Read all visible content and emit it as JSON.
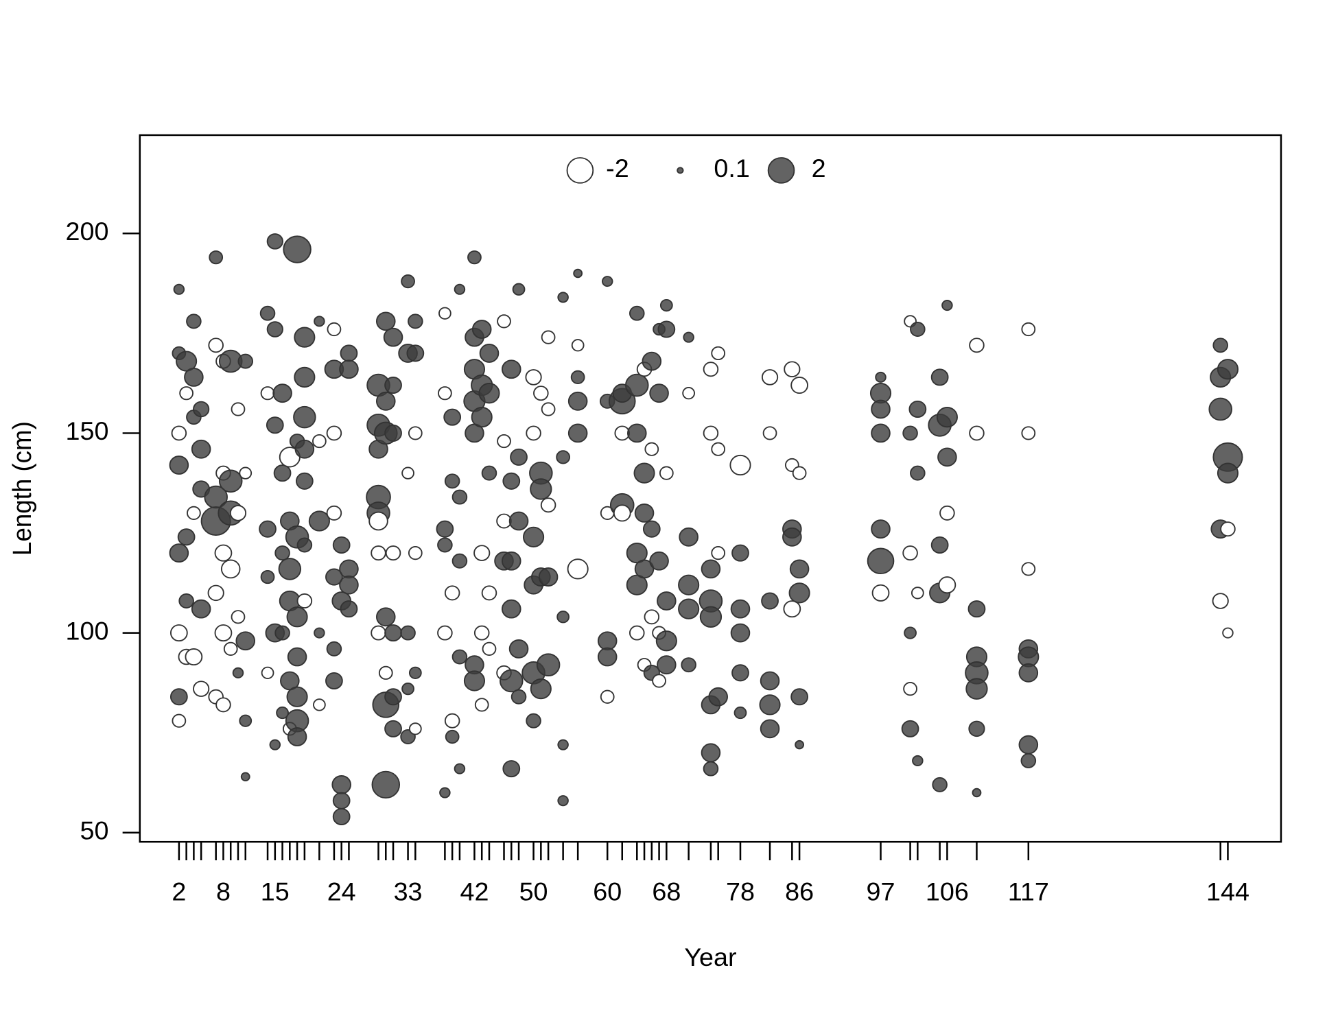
{
  "chart_data": {
    "type": "bubble",
    "x_label": "Year",
    "y_label": "Length (cm)",
    "xlim": [
      -3.3,
      151.2
    ],
    "ylim": [
      47.7,
      224.6
    ],
    "xticks": [
      2,
      8,
      15,
      24,
      33,
      42,
      50,
      60,
      68,
      78,
      86,
      97,
      106,
      117,
      144
    ],
    "xticks_minor": [
      3,
      4,
      5,
      7,
      9,
      10,
      11,
      14,
      16,
      17,
      18,
      19,
      21,
      23,
      25,
      29,
      30,
      31,
      34,
      38,
      39,
      40,
      43,
      44,
      46,
      47,
      48,
      51,
      52,
      54,
      56,
      62,
      64,
      65,
      66,
      67,
      71,
      74,
      75,
      82,
      85,
      101,
      102,
      105,
      110,
      143
    ],
    "yticks": [
      50,
      100,
      150,
      200
    ],
    "legend_values": [
      -2,
      0.1,
      2
    ],
    "positive_color": "#3c3c3c",
    "negative_color": "#ffffff",
    "columns": [
      {
        "x": 2,
        "y": [
          186,
          170,
          150,
          142,
          120,
          100,
          84,
          78
        ],
        "values": [
          0.3,
          0.5,
          -0.6,
          1,
          1,
          -0.8,
          0.8,
          -0.5
        ]
      },
      {
        "x": 3,
        "y": [
          168,
          160,
          124,
          108,
          94
        ],
        "values": [
          1.2,
          -0.5,
          0.8,
          0.6,
          -0.7
        ]
      },
      {
        "x": 4,
        "y": [
          178,
          164,
          154,
          130,
          94
        ],
        "values": [
          0.6,
          1,
          0.6,
          -0.5,
          -0.8
        ]
      },
      {
        "x": 5,
        "y": [
          156,
          146,
          136,
          106,
          86
        ],
        "values": [
          0.7,
          1,
          0.8,
          1,
          -0.7
        ]
      },
      {
        "x": 7,
        "y": [
          194,
          172,
          134,
          128,
          110,
          84
        ],
        "values": [
          0.5,
          -0.6,
          1.5,
          2.5,
          -0.7,
          -0.6
        ]
      },
      {
        "x": 8,
        "y": [
          168,
          140,
          120,
          100,
          82
        ],
        "values": [
          -0.6,
          -0.6,
          -0.8,
          -0.8,
          -0.6
        ]
      },
      {
        "x": 9,
        "y": [
          168,
          138,
          130,
          116,
          96
        ],
        "values": [
          1.5,
          1.5,
          1.8,
          -1,
          -0.5
        ]
      },
      {
        "x": 10,
        "y": [
          156,
          130,
          104,
          90
        ],
        "values": [
          -0.5,
          -0.7,
          -0.5,
          0.3
        ]
      },
      {
        "x": 11,
        "y": [
          168,
          140,
          98,
          78,
          64
        ],
        "values": [
          0.6,
          -0.4,
          1,
          0.4,
          0.2
        ]
      },
      {
        "x": 14,
        "y": [
          180,
          160,
          126,
          114,
          90
        ],
        "values": [
          0.6,
          -0.5,
          0.8,
          0.5,
          -0.4
        ]
      },
      {
        "x": 15,
        "y": [
          198,
          176,
          152,
          100,
          72
        ],
        "values": [
          0.7,
          0.7,
          0.8,
          1,
          0.3
        ]
      },
      {
        "x": 16,
        "y": [
          160,
          140,
          120,
          100,
          80
        ],
        "values": [
          1,
          0.8,
          0.6,
          0.6,
          0.4
        ]
      },
      {
        "x": 17,
        "y": [
          144,
          128,
          116,
          108,
          88,
          76
        ],
        "values": [
          -1.2,
          1,
          1.4,
          1.2,
          1,
          -0.5
        ]
      },
      {
        "x": 18,
        "y": [
          196,
          148,
          124,
          104,
          94,
          84,
          78,
          74
        ],
        "values": [
          2.2,
          0.6,
          1.5,
          1.2,
          1,
          1.2,
          1.5,
          1
        ]
      },
      {
        "x": 19,
        "y": [
          174,
          164,
          154,
          146,
          138,
          122,
          108
        ],
        "values": [
          1.2,
          1.2,
          1.4,
          1,
          0.8,
          0.6,
          -0.6
        ]
      },
      {
        "x": 21,
        "y": [
          178,
          148,
          128,
          100,
          82
        ],
        "values": [
          0.3,
          -0.5,
          1.2,
          0.3,
          -0.4
        ]
      },
      {
        "x": 23,
        "y": [
          176,
          166,
          150,
          130,
          114,
          96,
          88
        ],
        "values": [
          -0.5,
          1,
          -0.6,
          -0.6,
          0.8,
          0.6,
          0.8
        ]
      },
      {
        "x": 24,
        "y": [
          122,
          108,
          62,
          58,
          54
        ],
        "values": [
          0.8,
          1,
          1,
          0.8,
          0.8
        ]
      },
      {
        "x": 25,
        "y": [
          170,
          166,
          116,
          112,
          106
        ],
        "values": [
          0.8,
          1,
          1,
          1,
          0.8
        ]
      },
      {
        "x": 29,
        "y": [
          162,
          152,
          146,
          134,
          130,
          128,
          120,
          100
        ],
        "values": [
          1.5,
          1.5,
          1,
          1.7,
          1.5,
          -1,
          -0.6,
          -0.6
        ]
      },
      {
        "x": 30,
        "y": [
          178,
          158,
          150,
          104,
          82,
          62,
          90
        ],
        "values": [
          1,
          1,
          1.5,
          1,
          2,
          2.2,
          -0.5
        ]
      },
      {
        "x": 31,
        "y": [
          174,
          162,
          150,
          120,
          100,
          84,
          76
        ],
        "values": [
          1,
          0.8,
          0.8,
          -0.6,
          0.8,
          0.8,
          0.8
        ]
      },
      {
        "x": 33,
        "y": [
          188,
          170,
          140,
          100,
          86,
          74
        ],
        "values": [
          0.5,
          1,
          -0.4,
          0.6,
          0.4,
          0.6
        ]
      },
      {
        "x": 34,
        "y": [
          178,
          170,
          150,
          120,
          90,
          76
        ],
        "values": [
          0.6,
          0.8,
          -0.5,
          -0.5,
          0.4,
          -0.4
        ]
      },
      {
        "x": 38,
        "y": [
          180,
          160,
          126,
          122,
          100,
          60
        ],
        "values": [
          -0.4,
          -0.5,
          0.8,
          0.6,
          -0.6,
          0.3
        ]
      },
      {
        "x": 39,
        "y": [
          154,
          138,
          110,
          78,
          74
        ],
        "values": [
          0.8,
          0.6,
          -0.6,
          -0.6,
          0.5
        ]
      },
      {
        "x": 40,
        "y": [
          186,
          134,
          118,
          94,
          66
        ],
        "values": [
          0.3,
          0.6,
          0.6,
          0.6,
          0.3
        ]
      },
      {
        "x": 42,
        "y": [
          194,
          174,
          166,
          158,
          150,
          92,
          88
        ],
        "values": [
          0.5,
          1,
          1.2,
          1.3,
          1,
          1,
          1.2
        ]
      },
      {
        "x": 43,
        "y": [
          176,
          162,
          154,
          120,
          100,
          82
        ],
        "values": [
          1,
          1.3,
          1.2,
          -0.7,
          -0.6,
          -0.5
        ]
      },
      {
        "x": 44,
        "y": [
          170,
          160,
          140,
          110,
          96
        ],
        "values": [
          1,
          1.2,
          0.6,
          -0.6,
          -0.5
        ]
      },
      {
        "x": 46,
        "y": [
          178,
          148,
          128,
          118,
          90
        ],
        "values": [
          -0.5,
          -0.5,
          -0.6,
          1,
          -0.6
        ]
      },
      {
        "x": 47,
        "y": [
          166,
          138,
          118,
          106,
          88,
          66
        ],
        "values": [
          1,
          0.8,
          1,
          1,
          1.5,
          0.8
        ]
      },
      {
        "x": 48,
        "y": [
          186,
          144,
          128,
          96,
          84
        ],
        "values": [
          0.4,
          0.8,
          1,
          1,
          0.6
        ]
      },
      {
        "x": 50,
        "y": [
          164,
          150,
          124,
          112,
          90,
          78
        ],
        "values": [
          -0.7,
          -0.6,
          1.2,
          1,
          1.5,
          0.6
        ]
      },
      {
        "x": 51,
        "y": [
          160,
          140,
          136,
          114,
          86
        ],
        "values": [
          -0.6,
          1.5,
          1.3,
          1,
          1.2
        ]
      },
      {
        "x": 52,
        "y": [
          174,
          156,
          132,
          114,
          92
        ],
        "values": [
          -0.5,
          -0.5,
          -0.6,
          1,
          1.5
        ]
      },
      {
        "x": 54,
        "y": [
          184,
          144,
          104,
          72,
          58
        ],
        "values": [
          0.3,
          0.5,
          0.4,
          0.3,
          0.3
        ]
      },
      {
        "x": 56,
        "y": [
          190,
          172,
          164,
          158,
          150,
          116
        ],
        "values": [
          0.2,
          -0.4,
          0.5,
          1,
          1,
          -1.2
        ]
      },
      {
        "x": 60,
        "y": [
          188,
          158,
          130,
          98,
          94,
          84
        ],
        "values": [
          0.3,
          0.6,
          -0.5,
          1,
          1,
          -0.5
        ]
      },
      {
        "x": 62,
        "y": [
          158,
          160,
          132,
          130,
          150
        ],
        "values": [
          2,
          1,
          1.6,
          -0.8,
          -0.6
        ]
      },
      {
        "x": 64,
        "y": [
          180,
          162,
          150,
          120,
          112,
          100
        ],
        "values": [
          0.6,
          1.5,
          1,
          1.2,
          1.2,
          -0.6
        ]
      },
      {
        "x": 65,
        "y": [
          166,
          140,
          130,
          116,
          92
        ],
        "values": [
          -0.6,
          1.2,
          1,
          1,
          -0.5
        ]
      },
      {
        "x": 66,
        "y": [
          168,
          146,
          126,
          104,
          90
        ],
        "values": [
          1,
          -0.5,
          0.8,
          -0.6,
          0.7
        ]
      },
      {
        "x": 67,
        "y": [
          176,
          160,
          118,
          100,
          88
        ],
        "values": [
          0.4,
          1,
          1,
          -0.5,
          -0.5
        ]
      },
      {
        "x": 68,
        "y": [
          182,
          176,
          140,
          108,
          98,
          92
        ],
        "values": [
          0.4,
          0.8,
          -0.5,
          1,
          1.2,
          1
        ]
      },
      {
        "x": 71,
        "y": [
          174,
          160,
          124,
          112,
          106,
          92
        ],
        "values": [
          0.3,
          -0.4,
          1,
          1.2,
          1.2,
          0.6
        ]
      },
      {
        "x": 74,
        "y": [
          166,
          150,
          116,
          108,
          104,
          82,
          70,
          66
        ],
        "values": [
          -0.6,
          -0.6,
          1,
          1.5,
          1.3,
          1,
          1,
          0.6
        ]
      },
      {
        "x": 75,
        "y": [
          170,
          146,
          120,
          84
        ],
        "values": [
          -0.5,
          -0.5,
          -0.5,
          1
        ]
      },
      {
        "x": 78,
        "y": [
          142,
          120,
          106,
          100,
          90,
          80
        ],
        "values": [
          -1.2,
          0.8,
          1,
          1,
          0.8,
          0.4
        ]
      },
      {
        "x": 82,
        "y": [
          164,
          150,
          108,
          88,
          82,
          76
        ],
        "values": [
          -0.7,
          -0.5,
          0.8,
          1,
          1.2,
          1
        ]
      },
      {
        "x": 85,
        "y": [
          166,
          142,
          126,
          124,
          106
        ],
        "values": [
          -0.7,
          -0.5,
          1,
          1,
          -0.8
        ]
      },
      {
        "x": 86,
        "y": [
          162,
          140,
          116,
          110,
          84,
          72
        ],
        "values": [
          -0.8,
          -0.5,
          1,
          1.2,
          0.8,
          0.2
        ]
      },
      {
        "x": 97,
        "y": [
          164,
          160,
          156,
          150,
          126,
          118,
          110
        ],
        "values": [
          0.3,
          1.2,
          1,
          1,
          1,
          2,
          -0.8
        ]
      },
      {
        "x": 101,
        "y": [
          178,
          150,
          120,
          100,
          86,
          76
        ],
        "values": [
          -0.4,
          0.6,
          -0.6,
          0.4,
          -0.5,
          0.8
        ]
      },
      {
        "x": 102,
        "y": [
          176,
          156,
          140,
          110,
          68
        ],
        "values": [
          0.6,
          0.8,
          0.6,
          -0.4,
          0.3
        ]
      },
      {
        "x": 105,
        "y": [
          164,
          152,
          122,
          110,
          62
        ],
        "values": [
          0.8,
          1.5,
          0.8,
          1.2,
          0.6
        ]
      },
      {
        "x": 106,
        "y": [
          182,
          154,
          144,
          130,
          112
        ],
        "values": [
          0.3,
          1.2,
          1,
          -0.6,
          -0.8
        ]
      },
      {
        "x": 110,
        "y": [
          172,
          150,
          106,
          94,
          90,
          86,
          76,
          60
        ],
        "values": [
          -0.6,
          -0.6,
          0.8,
          1.2,
          1.5,
          1.3,
          0.7,
          0.2
        ]
      },
      {
        "x": 117,
        "y": [
          176,
          150,
          116,
          96,
          94,
          90,
          72,
          68
        ],
        "values": [
          -0.5,
          -0.5,
          -0.5,
          1,
          1.2,
          1,
          1,
          0.6
        ]
      },
      {
        "x": 143,
        "y": [
          172,
          164,
          156,
          126,
          108
        ],
        "values": [
          0.6,
          1.2,
          1.5,
          1,
          -0.7
        ]
      },
      {
        "x": 144,
        "y": [
          166,
          144,
          140,
          126,
          100
        ],
        "values": [
          1.2,
          2.5,
          1.2,
          -0.6,
          -0.3
        ]
      }
    ]
  }
}
